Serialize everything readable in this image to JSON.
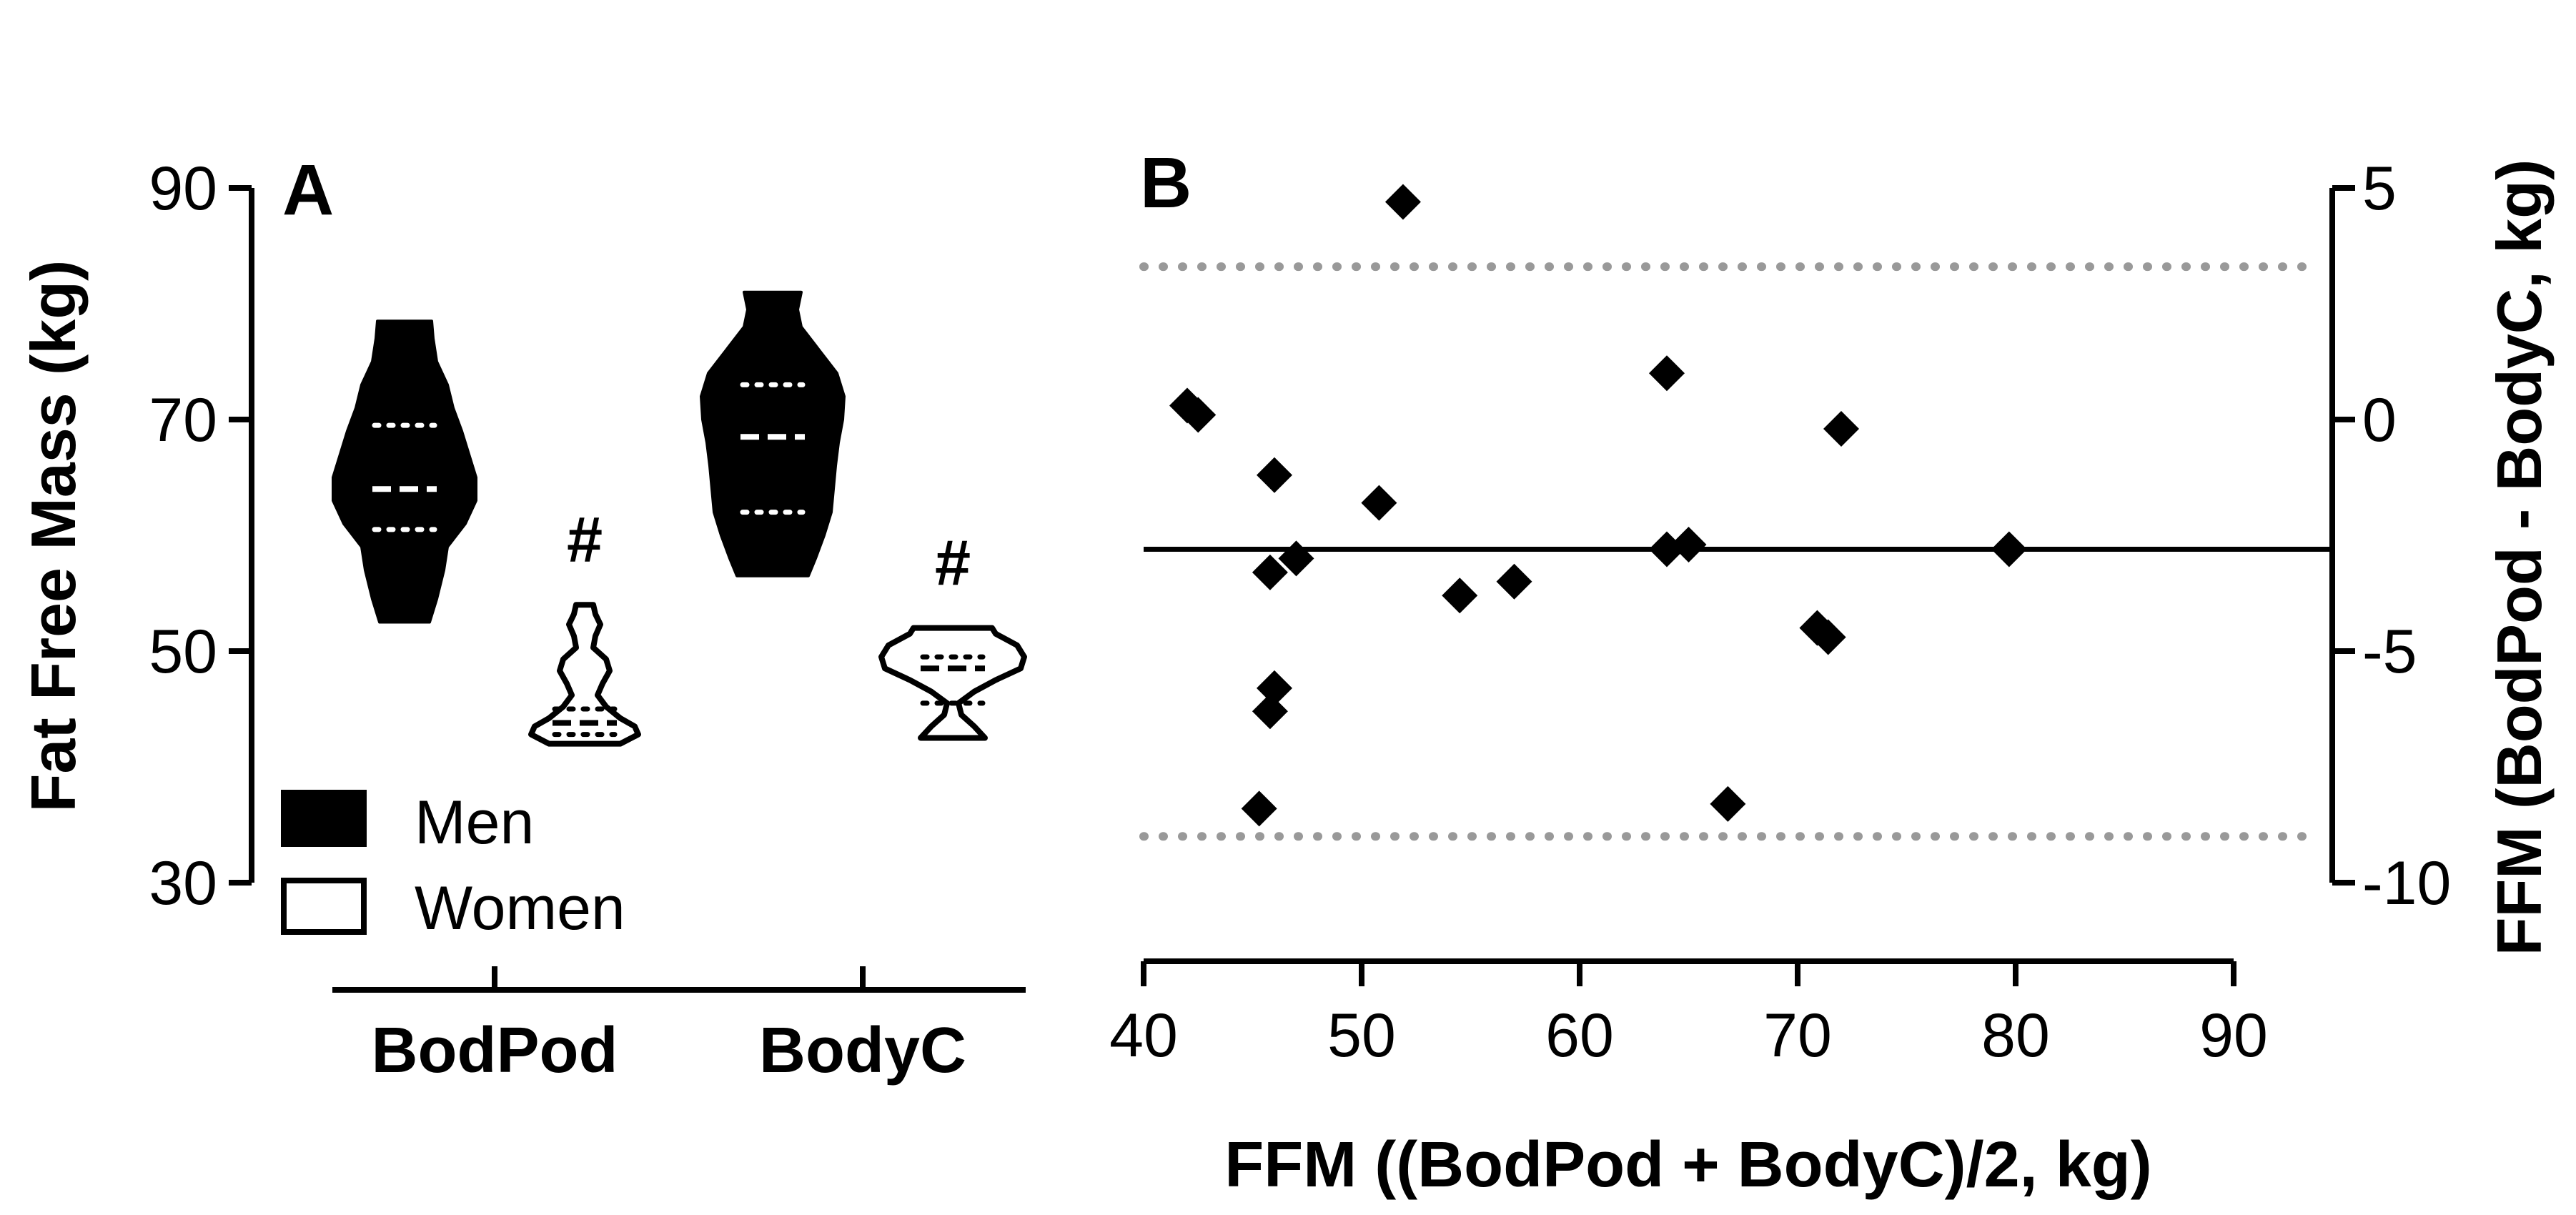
{
  "chart_data": [
    {
      "panel": "A",
      "type": "violin",
      "ylabel": "Fat Free Mass (kg)",
      "ylim": [
        30,
        90
      ],
      "yticks": [
        30,
        50,
        70,
        90
      ],
      "categories": [
        "BodPod",
        "BodyC"
      ],
      "legend": {
        "placement": "bottom-left",
        "entries": [
          "Men",
          "Women"
        ]
      },
      "significance_marker": "#",
      "series": [
        {
          "name": "Men",
          "fill": "#000000",
          "groups": [
            {
              "category": "BodPod",
              "min": 52.5,
              "max": 78.5,
              "q1": 60.5,
              "median": 64.0,
              "q3": 69.5,
              "profile": [
                [
                  52.5,
                  0.35
                ],
                [
                  54.5,
                  0.45
                ],
                [
                  57,
                  0.55
                ],
                [
                  59,
                  0.6
                ],
                [
                  61,
                  0.85
                ],
                [
                  63,
                  1.0
                ],
                [
                  65,
                  1.0
                ],
                [
                  67,
                  0.9
                ],
                [
                  69,
                  0.8
                ],
                [
                  71,
                  0.68
                ],
                [
                  73,
                  0.6
                ],
                [
                  75,
                  0.45
                ],
                [
                  77,
                  0.4
                ],
                [
                  78.5,
                  0.38
                ]
              ]
            },
            {
              "category": "BodyC",
              "min": 56.5,
              "max": 81.0,
              "q1": 62.0,
              "median": 68.5,
              "q3": 73.0,
              "profile": [
                [
                  56.5,
                  0.5
                ],
                [
                  58,
                  0.6
                ],
                [
                  60,
                  0.72
                ],
                [
                  62,
                  0.82
                ],
                [
                  64,
                  0.85
                ],
                [
                  66,
                  0.88
                ],
                [
                  68,
                  0.92
                ],
                [
                  70,
                  0.98
                ],
                [
                  72,
                  1.0
                ],
                [
                  74,
                  0.9
                ],
                [
                  76,
                  0.65
                ],
                [
                  78,
                  0.4
                ],
                [
                  79.5,
                  0.35
                ],
                [
                  81,
                  0.4
                ]
              ]
            }
          ]
        },
        {
          "name": "Women",
          "fill": "#ffffff",
          "groups": [
            {
              "category": "BodPod",
              "min": 42.0,
              "max": 54.0,
              "q1": 42.8,
              "median": 43.8,
              "q3": 45.0,
              "profile": [
                [
                  42,
                  0.5
                ],
                [
                  42.8,
                  0.75
                ],
                [
                  43.5,
                  0.7
                ],
                [
                  44.2,
                  0.5
                ],
                [
                  45.2,
                  0.3
                ],
                [
                  46.2,
                  0.18
                ],
                [
                  47.2,
                  0.25
                ],
                [
                  48.3,
                  0.35
                ],
                [
                  49.3,
                  0.3
                ],
                [
                  50.3,
                  0.12
                ],
                [
                  51.3,
                  0.15
                ],
                [
                  52.3,
                  0.22
                ],
                [
                  53.2,
                  0.15
                ],
                [
                  54,
                  0.12
                ]
              ]
            },
            {
              "category": "BodyC",
              "min": 42.5,
              "max": 52.0,
              "q1": 45.5,
              "median": 48.5,
              "q3": 49.5,
              "profile": [
                [
                  42.5,
                  0.45
                ],
                [
                  43.5,
                  0.3
                ],
                [
                  44.5,
                  0.12
                ],
                [
                  45.5,
                  0.08
                ],
                [
                  46.5,
                  0.3
                ],
                [
                  47.5,
                  0.6
                ],
                [
                  48.5,
                  0.95
                ],
                [
                  49.5,
                  1.0
                ],
                [
                  50.5,
                  0.9
                ],
                [
                  51.5,
                  0.6
                ],
                [
                  52,
                  0.55
                ]
              ]
            }
          ]
        }
      ]
    },
    {
      "panel": "B",
      "type": "scatter",
      "xlabel": "FFM ((BodPod + BodyC)/2, kg)",
      "ylabel": "FFM (BodPod - BodyC, kg)",
      "xlim": [
        40,
        90
      ],
      "ylim": [
        -10,
        5
      ],
      "xticks": [
        40,
        50,
        60,
        70,
        80,
        90
      ],
      "yticks": [
        -10,
        -5,
        0,
        5
      ],
      "mean_bias": -2.8,
      "limits_of_agreement": [
        -9.0,
        3.3
      ],
      "points": [
        [
          42.0,
          0.3
        ],
        [
          42.5,
          0.1
        ],
        [
          46.0,
          -1.2
        ],
        [
          45.8,
          -3.3
        ],
        [
          46.0,
          -5.8
        ],
        [
          45.8,
          -6.3
        ],
        [
          45.3,
          -8.4
        ],
        [
          47.0,
          -3.0
        ],
        [
          50.8,
          -1.8
        ],
        [
          51.9,
          4.7
        ],
        [
          54.5,
          -3.8
        ],
        [
          57.0,
          -3.5
        ],
        [
          64.0,
          1.0
        ],
        [
          64.0,
          -2.8
        ],
        [
          65.0,
          -2.7
        ],
        [
          66.8,
          -8.3
        ],
        [
          70.9,
          -4.5
        ],
        [
          71.4,
          -4.7
        ],
        [
          72.0,
          -0.2
        ],
        [
          79.7,
          -2.8
        ]
      ]
    }
  ],
  "colors": {
    "ink": "#000000",
    "limits": "#999999",
    "background": "#ffffff"
  }
}
